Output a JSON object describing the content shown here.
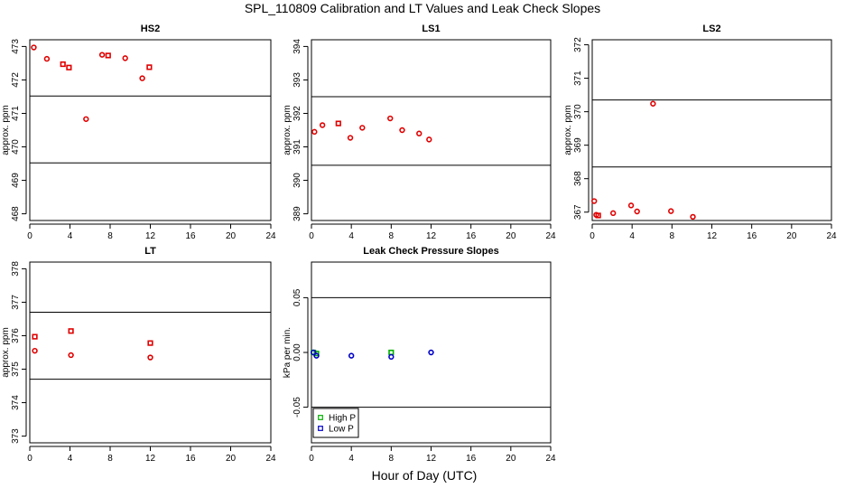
{
  "figure": {
    "title": "SPL_110809  Calibration and LT Values and Leak Check Slopes",
    "xlabel": "Hour of Day (UTC)"
  },
  "chart_data": [
    {
      "id": "hs2",
      "type": "scatter",
      "title": "HS2",
      "xlabel": "",
      "ylabel": "approx. ppm",
      "xlim": [
        0,
        24
      ],
      "ylim": [
        467.8,
        473.2
      ],
      "xticks": [
        0,
        4,
        8,
        12,
        16,
        20,
        24
      ],
      "yticks": [
        468,
        469,
        470,
        471,
        472,
        473
      ],
      "hlines": [
        469.52,
        471.52
      ],
      "series": [
        {
          "name": "circle",
          "marker": "circle",
          "color": "#e00000",
          "x": [
            0.4,
            1.7,
            5.6,
            7.2,
            9.5,
            11.2
          ],
          "y": [
            472.97,
            472.63,
            470.83,
            472.75,
            472.65,
            472.05
          ]
        },
        {
          "name": "square",
          "marker": "square",
          "color": "#e00000",
          "x": [
            3.3,
            3.9,
            7.8,
            11.9
          ],
          "y": [
            472.47,
            472.37,
            472.73,
            472.38
          ]
        }
      ]
    },
    {
      "id": "ls1",
      "type": "scatter",
      "title": "LS1",
      "xlabel": "",
      "ylabel": "approx. ppm",
      "xlim": [
        0,
        24
      ],
      "ylim": [
        388.8,
        394.2
      ],
      "xticks": [
        0,
        4,
        8,
        12,
        16,
        20,
        24
      ],
      "yticks": [
        389,
        390,
        391,
        392,
        393,
        394
      ],
      "hlines": [
        390.45,
        392.5
      ],
      "series": [
        {
          "name": "circle",
          "marker": "circle",
          "color": "#e00000",
          "x": [
            0.3,
            1.1,
            3.9,
            5.1,
            7.9,
            9.1,
            10.8,
            11.8
          ],
          "y": [
            391.45,
            391.65,
            391.27,
            391.57,
            391.85,
            391.5,
            391.4,
            391.22
          ]
        },
        {
          "name": "square",
          "marker": "square",
          "color": "#e00000",
          "x": [
            2.7
          ],
          "y": [
            391.7
          ]
        }
      ]
    },
    {
      "id": "ls2",
      "type": "scatter",
      "title": "LS2",
      "xlabel": "",
      "ylabel": "approx. ppm",
      "xlim": [
        0,
        24
      ],
      "ylim": [
        366.75,
        372.15
      ],
      "xticks": [
        0,
        4,
        8,
        12,
        16,
        20,
        24
      ],
      "yticks": [
        367,
        368,
        369,
        370,
        371,
        372
      ],
      "hlines": [
        368.35,
        370.35
      ],
      "series": [
        {
          "name": "circle",
          "marker": "circle",
          "color": "#e00000",
          "x": [
            0.2,
            0.4,
            2.1,
            3.9,
            4.5,
            6.1,
            7.9,
            10.1
          ],
          "y": [
            367.33,
            366.92,
            366.97,
            367.2,
            367.02,
            370.24,
            367.03,
            366.86
          ]
        },
        {
          "name": "square",
          "marker": "square",
          "color": "#e00000",
          "x": [
            0.6
          ],
          "y": [
            366.9
          ]
        }
      ]
    },
    {
      "id": "lt",
      "type": "scatter",
      "title": "LT",
      "xlabel": "",
      "ylabel": "approx. ppm",
      "xlim": [
        0,
        24
      ],
      "ylim": [
        372.8,
        378.2
      ],
      "xticks": [
        0,
        4,
        8,
        12,
        16,
        20,
        24
      ],
      "yticks": [
        373,
        374,
        375,
        376,
        377,
        378
      ],
      "hlines": [
        374.7,
        376.7
      ],
      "series": [
        {
          "name": "circle",
          "marker": "circle",
          "color": "#e00000",
          "x": [
            0.5,
            4.1,
            12.0
          ],
          "y": [
            375.55,
            375.42,
            375.35
          ]
        },
        {
          "name": "square",
          "marker": "square",
          "color": "#e00000",
          "x": [
            0.5,
            4.1,
            12.0
          ],
          "y": [
            375.97,
            376.14,
            375.78
          ]
        }
      ]
    },
    {
      "id": "leak",
      "type": "scatter",
      "title": "Leak Check Pressure Slopes",
      "xlabel": "",
      "ylabel": "kPa per min.",
      "xlim": [
        0,
        24
      ],
      "ylim": [
        -0.0825,
        0.0825
      ],
      "xticks": [
        0,
        4,
        8,
        12,
        16,
        20,
        24
      ],
      "yticks": [
        -0.05,
        0.0,
        0.05
      ],
      "ytick_labels": [
        "-0.05",
        "0.00",
        "0.05"
      ],
      "hlines": [
        -0.05,
        0.05
      ],
      "series": [
        {
          "name": "High P",
          "marker": "square",
          "color": "#00b000",
          "x": [
            0.2,
            0.5,
            8.0
          ],
          "y": [
            0.0,
            -0.001,
            0.0
          ]
        },
        {
          "name": "Low P",
          "marker": "circle",
          "color": "#0000c8",
          "x": [
            0.2,
            0.5,
            4.0,
            8.0,
            12.0
          ],
          "y": [
            0.0,
            -0.003,
            -0.003,
            -0.004,
            0.0
          ]
        }
      ],
      "legend": {
        "placement": "bottom-left",
        "entries": [
          "High P",
          "Low P"
        ]
      }
    }
  ]
}
